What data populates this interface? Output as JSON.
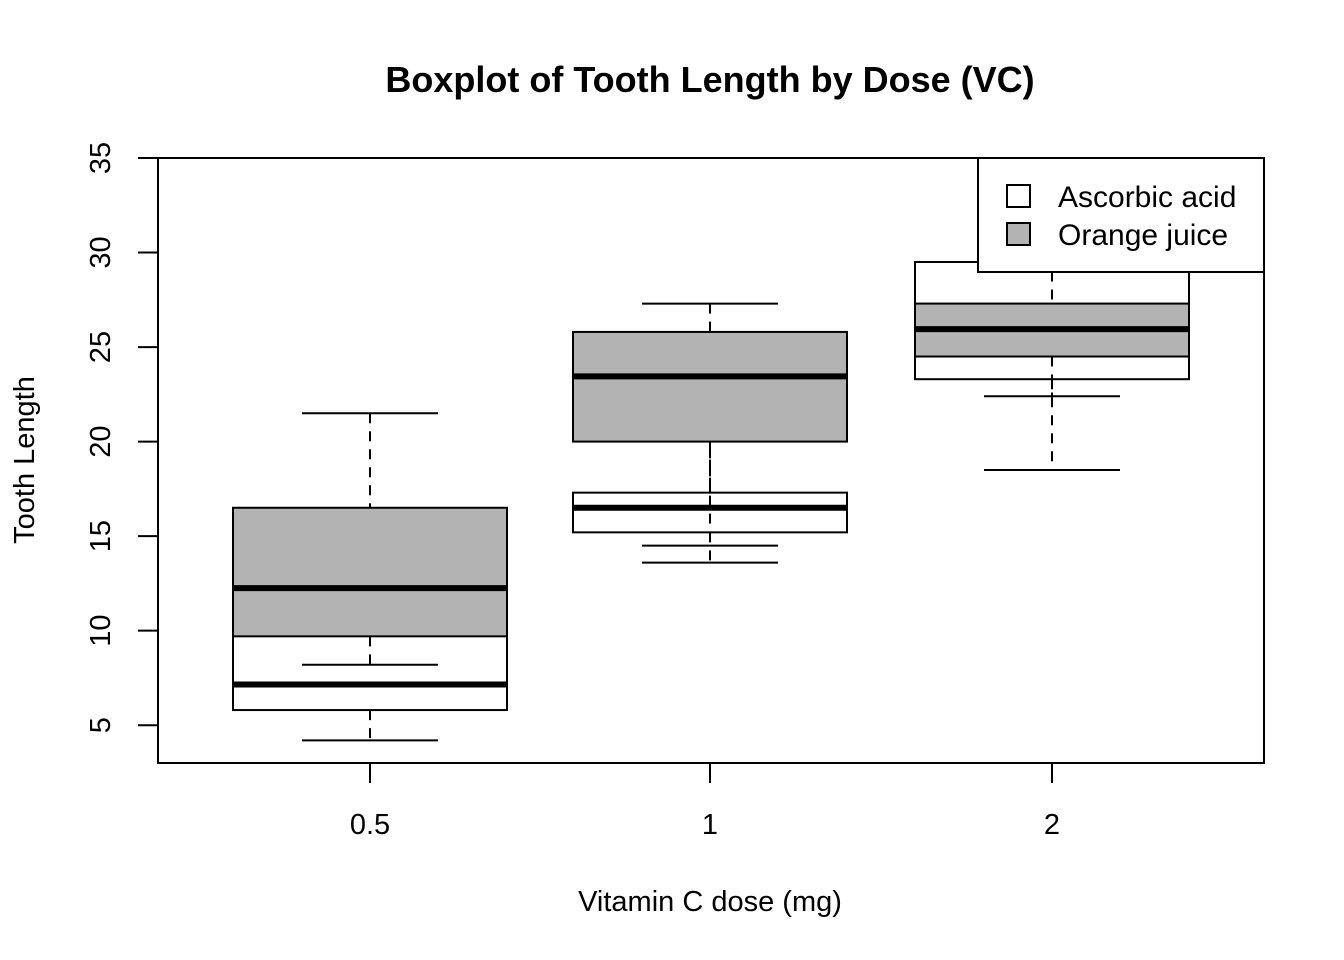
{
  "chart_data": {
    "type": "boxplot",
    "title": "Boxplot of Tooth Length by Dose (VC)",
    "xlabel": "Vitamin C dose (mg)",
    "ylabel": "Tooth Length",
    "ylim": [
      3,
      35
    ],
    "yticks": [
      5,
      10,
      15,
      20,
      25,
      30,
      35
    ],
    "categories": [
      "0.5",
      "1",
      "2"
    ],
    "grid": false,
    "legend": {
      "position": "top-right",
      "entries": [
        {
          "label": "Ascorbic acid",
          "fill": "#ffffff"
        },
        {
          "label": "Orange juice",
          "fill": "#b3b3b3"
        }
      ]
    },
    "series": [
      {
        "name": "Ascorbic acid",
        "fill": "#ffffff",
        "boxes": [
          {
            "category": "0.5",
            "min": 4.2,
            "q1": 5.8,
            "median": 7.15,
            "q3": 11.2,
            "max": 11.5
          },
          {
            "category": "1",
            "min": 13.6,
            "q1": 15.2,
            "median": 16.5,
            "q3": 17.3,
            "max": 22.5
          },
          {
            "category": "2",
            "min": 18.5,
            "q1": 23.3,
            "median": 25.95,
            "q3": 29.5,
            "max": 33.9
          }
        ]
      },
      {
        "name": "Orange juice",
        "fill": "#b3b3b3",
        "boxes": [
          {
            "category": "0.5",
            "min": 8.2,
            "q1": 9.7,
            "median": 12.25,
            "q3": 16.5,
            "max": 21.5
          },
          {
            "category": "1",
            "min": 14.5,
            "q1": 20.0,
            "median": 23.45,
            "q3": 25.8,
            "max": 27.3
          },
          {
            "category": "2",
            "min": 22.4,
            "q1": 24.5,
            "median": 25.95,
            "q3": 27.3,
            "max": 30.9
          }
        ]
      }
    ]
  }
}
